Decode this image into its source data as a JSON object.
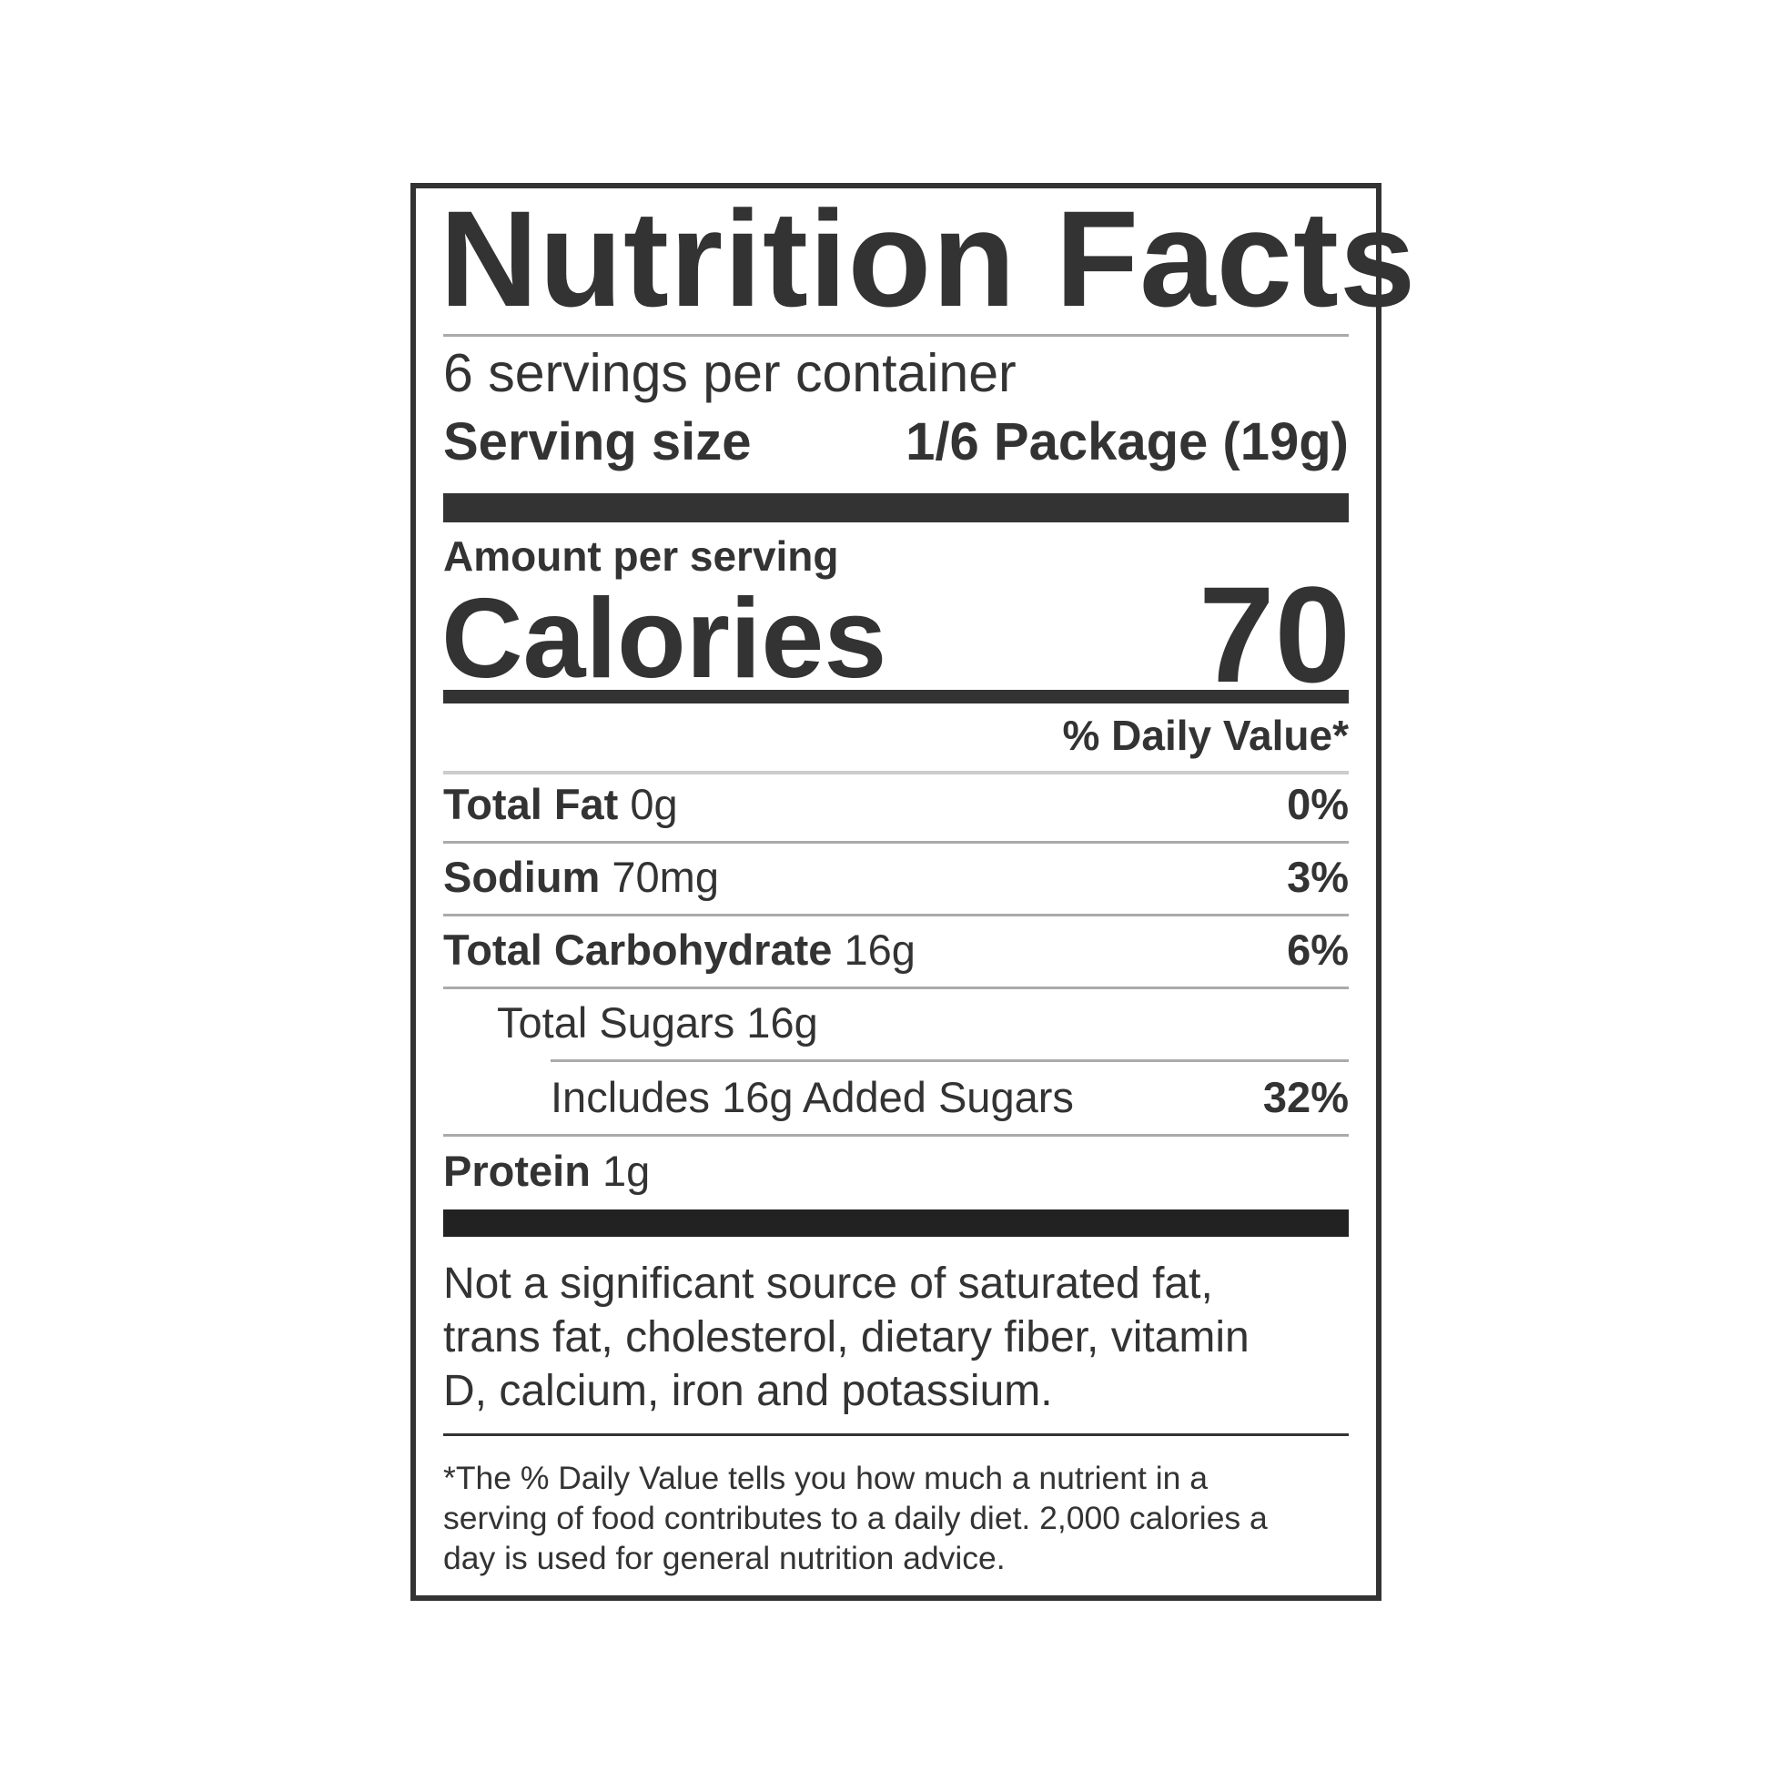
{
  "title": "Nutrition Facts",
  "servings_per_container": "6 servings per container",
  "serving_size": {
    "label": "Serving size",
    "value": "1/6 Package (19g)"
  },
  "amount_per_serving": "Amount per serving",
  "calories": {
    "label": "Calories",
    "value": "70"
  },
  "daily_value_header": "% Daily Value*",
  "nutrients": [
    {
      "name": "Total Fat",
      "amount": "0g",
      "dv": "0%"
    },
    {
      "name": "Sodium",
      "amount": "70mg",
      "dv": "3%"
    },
    {
      "name": "Total Carbohydrate",
      "amount": "16g",
      "dv": "6%"
    },
    {
      "name": "",
      "amount": "Total Sugars 16g",
      "dv": ""
    },
    {
      "name": "",
      "amount": "Includes 16g Added Sugars",
      "dv": "32%"
    },
    {
      "name": "Protein",
      "amount": "1g",
      "dv": ""
    }
  ],
  "not_significant": [
    "Not a significant source of saturated fat,",
    "trans fat, cholesterol, dietary fiber, vitamin",
    "D, calcium, iron and potassium."
  ],
  "footnote": [
    "*The % Daily Value tells you how much a nutrient in a",
    "serving of food contributes to a daily diet. 2,000 calories a",
    "day is used for general nutrition advice."
  ],
  "colors": {
    "text": "#333333",
    "rule": "#aaaaaa"
  }
}
